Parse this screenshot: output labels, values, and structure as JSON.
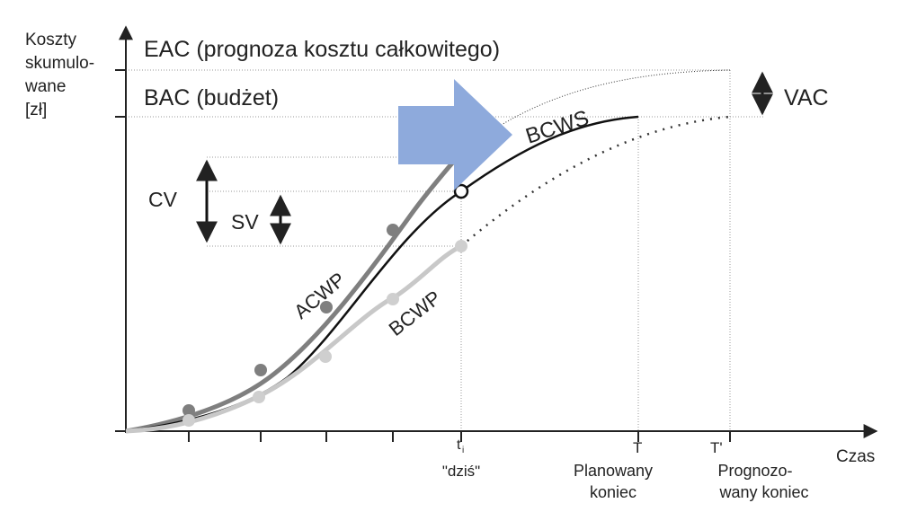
{
  "y_axis_label": [
    "Koszty",
    "skumulo-",
    "wane",
    "[zł]"
  ],
  "x_axis_label": "Czas",
  "eac_label": "EAC (prognoza kosztu całkowitego)",
  "bac_label": "BAC (budżet)",
  "vac_label": "VAC",
  "curves": {
    "bcws": "BCWS",
    "acwp": "ACWP",
    "bcwp": "BCWP"
  },
  "cv_label": "CV",
  "sv_label": "SV",
  "today": {
    "symbol": "t",
    "subscript": "i",
    "label": "\"dziś\""
  },
  "planned_end": {
    "symbol": "T",
    "lines": [
      "Planowany",
      "koniec"
    ]
  },
  "forecast_end": {
    "symbol": "T'",
    "lines": [
      "Prognozo-",
      "wany koniec"
    ]
  }
}
